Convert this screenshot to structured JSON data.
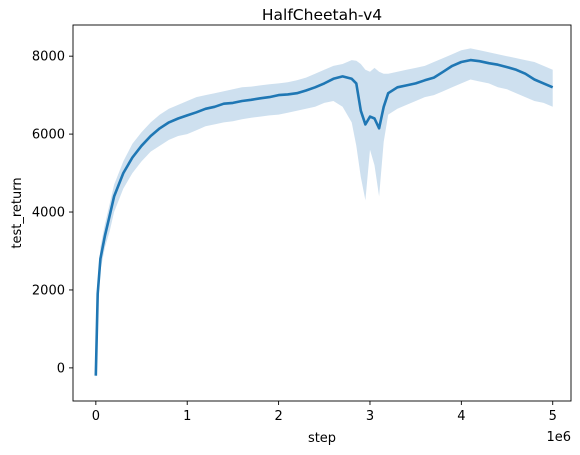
{
  "chart_data": {
    "type": "line",
    "title": "HalfCheetah-v4",
    "xlabel": "step",
    "ylabel": "test_return",
    "x_offset_text": "1e6",
    "xlim": [
      -0.25,
      5.2
    ],
    "ylim": [
      -850,
      8800
    ],
    "x_ticks": [
      0,
      1,
      2,
      3,
      4,
      5
    ],
    "x_tick_labels": [
      "0",
      "1",
      "2",
      "3",
      "4",
      "5"
    ],
    "y_ticks": [
      0,
      2000,
      4000,
      6000,
      8000
    ],
    "y_tick_labels": [
      "0",
      "2000",
      "4000",
      "6000",
      "8000"
    ],
    "grid": false,
    "legend": "none",
    "colors": {
      "line": "#1f77b4",
      "band": "#c6dbec"
    },
    "series": [
      {
        "x": [
          0,
          0.02,
          0.05,
          0.1,
          0.15,
          0.2,
          0.3,
          0.4,
          0.5,
          0.6,
          0.7,
          0.8,
          0.9,
          1.0,
          1.1,
          1.2,
          1.3,
          1.4,
          1.5,
          1.6,
          1.7,
          1.8,
          1.9,
          2.0,
          2.1,
          2.2,
          2.3,
          2.4,
          2.5,
          2.6,
          2.7,
          2.8,
          2.85,
          2.9,
          2.95,
          3.0,
          3.05,
          3.1,
          3.15,
          3.2,
          3.3,
          3.4,
          3.5,
          3.6,
          3.7,
          3.8,
          3.9,
          4.0,
          4.1,
          4.2,
          4.3,
          4.4,
          4.5,
          4.6,
          4.7,
          4.8,
          4.9,
          5.0
        ],
        "y": [
          -200,
          1900,
          2800,
          3400,
          3900,
          4400,
          5000,
          5400,
          5700,
          5950,
          6150,
          6300,
          6400,
          6480,
          6560,
          6650,
          6700,
          6780,
          6800,
          6850,
          6880,
          6920,
          6950,
          7000,
          7020,
          7050,
          7120,
          7200,
          7300,
          7420,
          7480,
          7420,
          7300,
          6600,
          6250,
          6450,
          6400,
          6150,
          6700,
          7050,
          7200,
          7250,
          7300,
          7380,
          7450,
          7600,
          7750,
          7850,
          7900,
          7870,
          7820,
          7780,
          7720,
          7650,
          7550,
          7400,
          7300,
          7200
        ],
        "lower": [
          -350,
          1500,
          2500,
          3100,
          3500,
          4000,
          4600,
          5000,
          5300,
          5550,
          5700,
          5850,
          5950,
          6000,
          6100,
          6200,
          6250,
          6300,
          6330,
          6380,
          6420,
          6450,
          6480,
          6500,
          6550,
          6600,
          6650,
          6700,
          6800,
          6850,
          6700,
          6300,
          5700,
          4900,
          4300,
          5600,
          5200,
          4400,
          5800,
          6500,
          6650,
          6750,
          6850,
          6950,
          7000,
          7100,
          7200,
          7300,
          7400,
          7350,
          7300,
          7200,
          7150,
          7050,
          6950,
          6850,
          6800,
          6700
        ],
        "upper": [
          100,
          2100,
          3100,
          3700,
          4200,
          4700,
          5300,
          5750,
          6050,
          6300,
          6500,
          6650,
          6750,
          6850,
          6950,
          7000,
          7050,
          7100,
          7150,
          7200,
          7220,
          7250,
          7280,
          7300,
          7330,
          7380,
          7450,
          7550,
          7650,
          7750,
          7800,
          7900,
          7880,
          7800,
          7650,
          7600,
          7700,
          7600,
          7550,
          7550,
          7600,
          7650,
          7700,
          7750,
          7850,
          7950,
          8050,
          8150,
          8200,
          8150,
          8100,
          8050,
          8000,
          7950,
          7900,
          7850,
          7750,
          7650
        ]
      }
    ]
  }
}
